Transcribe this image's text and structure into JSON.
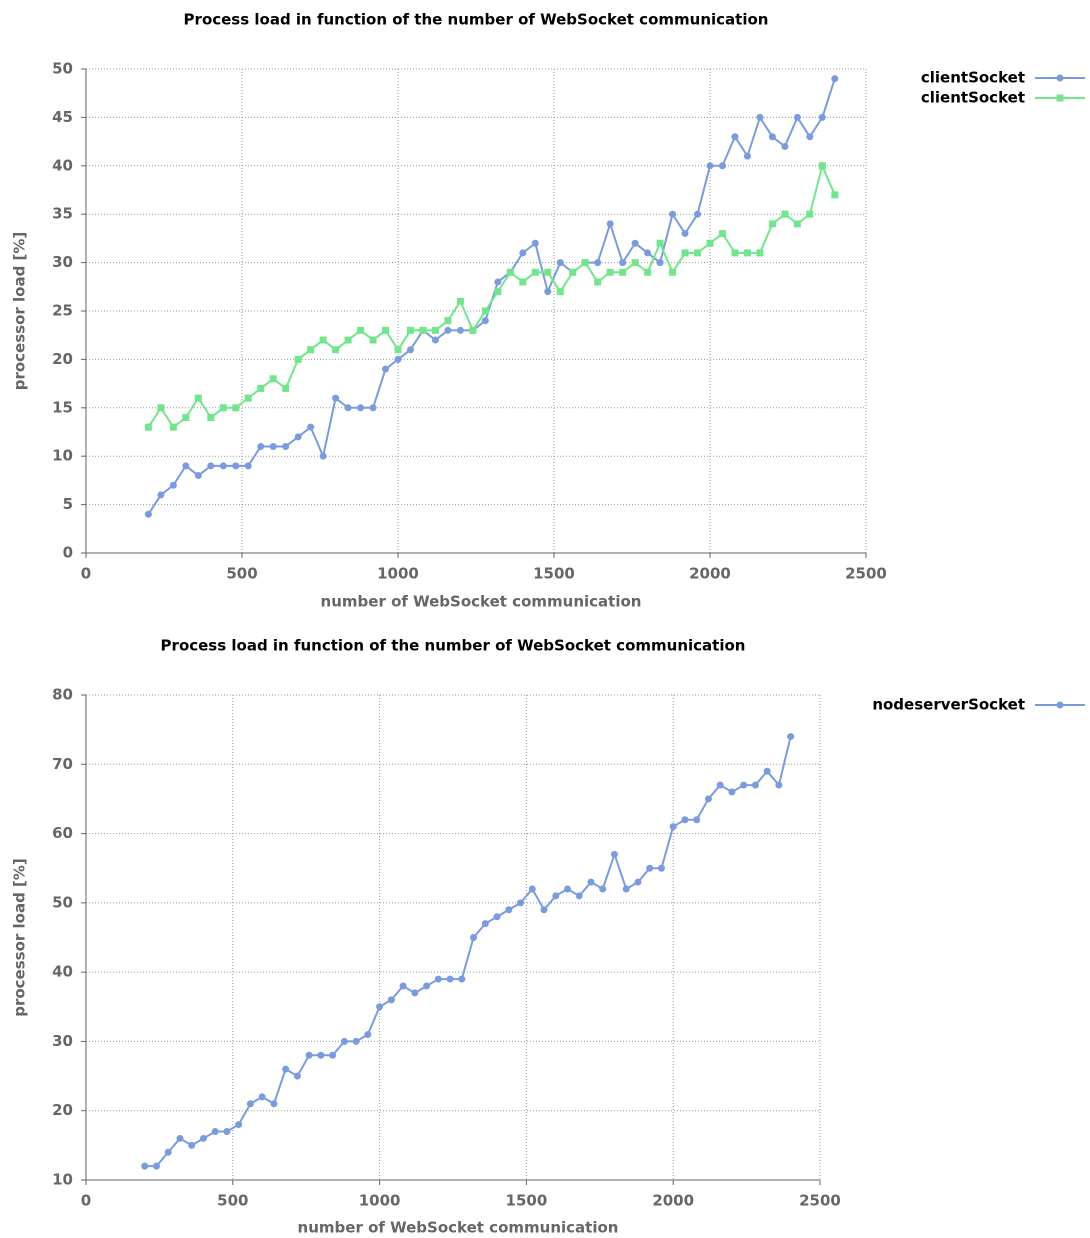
{
  "chart_data": [
    {
      "type": "line",
      "title": "Process load in function of the number of WebSocket communication",
      "x_label": "number of WebSocket communication",
      "y_label": "processor load [%]",
      "x": [
        200,
        240,
        280,
        320,
        360,
        400,
        440,
        480,
        520,
        560,
        600,
        640,
        680,
        720,
        760,
        800,
        840,
        880,
        920,
        960,
        1000,
        1040,
        1080,
        1120,
        1160,
        1200,
        1240,
        1280,
        1320,
        1360,
        1400,
        1440,
        1480,
        1520,
        1560,
        1600,
        1640,
        1680,
        1720,
        1760,
        1800,
        1840,
        1880,
        1920,
        1960,
        2000,
        2040,
        2080,
        2120,
        2160,
        2200,
        2240,
        2280,
        2320,
        2360,
        2400
      ],
      "series": [
        {
          "name": "clientSocket",
          "color": "#7b9be0",
          "marker": "circle",
          "values": [
            4,
            6,
            7,
            9,
            8,
            9,
            9,
            9,
            9,
            11,
            11,
            11,
            12,
            13,
            10,
            16,
            15,
            15,
            15,
            19,
            20,
            21,
            23,
            22,
            23,
            23,
            23,
            24,
            28,
            29,
            31,
            32,
            27,
            30,
            29,
            30,
            30,
            34,
            30,
            32,
            31,
            30,
            35,
            33,
            35,
            40,
            40,
            43,
            41,
            45,
            43,
            42,
            45,
            43,
            45,
            49
          ]
        },
        {
          "name": "clientSocket",
          "color": "#72e68a",
          "marker": "square",
          "values": [
            13,
            15,
            13,
            14,
            16,
            14,
            15,
            15,
            16,
            17,
            18,
            17,
            20,
            21,
            22,
            21,
            22,
            23,
            22,
            23,
            21,
            23,
            23,
            23,
            24,
            26,
            23,
            25,
            27,
            29,
            28,
            29,
            29,
            27,
            29,
            30,
            28,
            29,
            29,
            30,
            29,
            32,
            29,
            31,
            31,
            32,
            33,
            31,
            31,
            31,
            34,
            35,
            34,
            35,
            40,
            37
          ]
        }
      ],
      "xlim": [
        0,
        2500
      ],
      "xticks": [
        0,
        500,
        1000,
        1500,
        2000,
        2500
      ],
      "ylim": [
        0,
        50
      ],
      "yticks": [
        0,
        5,
        10,
        15,
        20,
        25,
        30,
        35,
        40,
        45,
        50
      ],
      "grid": true,
      "legend": "outside-right"
    },
    {
      "type": "line",
      "title": "Process load in function of the number of WebSocket communication",
      "x_label": "number of WebSocket communication",
      "y_label": "processor load [%]",
      "x": [
        200,
        240,
        280,
        320,
        360,
        400,
        440,
        480,
        520,
        560,
        600,
        640,
        680,
        720,
        760,
        800,
        840,
        880,
        920,
        960,
        1000,
        1040,
        1080,
        1120,
        1160,
        1200,
        1240,
        1280,
        1320,
        1360,
        1400,
        1440,
        1480,
        1520,
        1560,
        1600,
        1640,
        1680,
        1720,
        1760,
        1800,
        1840,
        1880,
        1920,
        1960,
        2000,
        2040,
        2080,
        2120,
        2160,
        2200,
        2240,
        2280,
        2320,
        2360,
        2400
      ],
      "series": [
        {
          "name": "nodeserverSocket",
          "color": "#7b9be0",
          "marker": "circle",
          "values": [
            12,
            12,
            14,
            16,
            15,
            16,
            17,
            17,
            18,
            21,
            22,
            21,
            26,
            25,
            28,
            28,
            28,
            30,
            30,
            31,
            35,
            36,
            38,
            37,
            38,
            39,
            39,
            39,
            45,
            47,
            48,
            49,
            50,
            52,
            49,
            51,
            52,
            51,
            53,
            52,
            57,
            52,
            53,
            55,
            55,
            61,
            62,
            62,
            65,
            67,
            66,
            67,
            67,
            69,
            67,
            74
          ]
        }
      ],
      "xlim": [
        0,
        2500
      ],
      "xticks": [
        0,
        500,
        1000,
        1500,
        2000,
        2500
      ],
      "ylim": [
        10,
        80
      ],
      "yticks": [
        10,
        20,
        30,
        40,
        50,
        60,
        70,
        80
      ],
      "grid": true,
      "legend": "outside-right"
    }
  ]
}
